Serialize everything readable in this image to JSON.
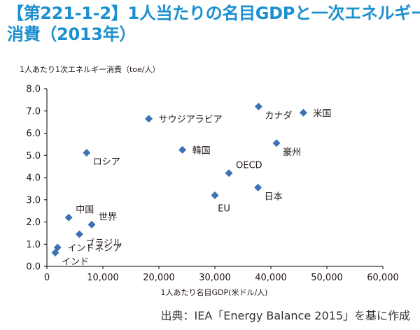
{
  "title_lines": [
    "【第221-1-2】1人当たりの名目GDPと一次エネルギー",
    "消費（2013年）"
  ],
  "source": "出典：IEA「Energy Balance 2015」を基に作成",
  "colors": {
    "title": "#1b8fd0",
    "marker": "#3a73b4",
    "axis": "#000000",
    "text": "#231815"
  },
  "chart_data": {
    "type": "scatter",
    "title": "",
    "ylabel": "1人あたり1次エネルギー消費（toe/人）",
    "xlabel": "1人あたり名目GDP(米ドル/人)",
    "xlim": [
      0,
      60000
    ],
    "ylim": [
      0.0,
      8.0
    ],
    "x_ticks": [
      0,
      10000,
      20000,
      30000,
      40000,
      50000,
      60000
    ],
    "x_tick_labels": [
      "0",
      "10,000",
      "20,000",
      "30,000",
      "40,000",
      "50,000",
      "60,000"
    ],
    "y_ticks": [
      0,
      1,
      2,
      3,
      4,
      5,
      6,
      7,
      8
    ],
    "y_tick_labels": [
      "0.0",
      "1.0",
      "2.0",
      "3.0",
      "4.0",
      "5.0",
      "6.0",
      "7.0",
      "8.0"
    ],
    "grid": false,
    "marker": "diamond",
    "points": [
      {
        "label": "サウジアラビア",
        "x": 18200,
        "y": 6.65,
        "label_side": "right"
      },
      {
        "label": "カナダ",
        "x": 37800,
        "y": 7.2,
        "label_side": "below-right"
      },
      {
        "label": "米国",
        "x": 45800,
        "y": 6.92,
        "label_side": "right"
      },
      {
        "label": "ロシア",
        "x": 7100,
        "y": 5.12,
        "label_side": "below-right"
      },
      {
        "label": "韓国",
        "x": 24200,
        "y": 5.25,
        "label_side": "right"
      },
      {
        "label": "豪州",
        "x": 41000,
        "y": 5.55,
        "label_side": "below-right"
      },
      {
        "label": "OECD",
        "x": 32500,
        "y": 4.2,
        "label_side": "above-right"
      },
      {
        "label": "日本",
        "x": 37700,
        "y": 3.55,
        "label_side": "below-right"
      },
      {
        "label": "EU",
        "x": 30000,
        "y": 3.2,
        "label_side": "below"
      },
      {
        "label": "中国",
        "x": 3900,
        "y": 2.2,
        "label_side": "above-right"
      },
      {
        "label": "世界",
        "x": 8000,
        "y": 1.88,
        "label_side": "above-right"
      },
      {
        "label": "ブラジル",
        "x": 5800,
        "y": 1.45,
        "label_side": "below-right"
      },
      {
        "label": "インドネシア",
        "x": 1900,
        "y": 0.85,
        "label_side": "right"
      },
      {
        "label": "インド",
        "x": 1500,
        "y": 0.62,
        "label_side": "below-right"
      }
    ]
  }
}
